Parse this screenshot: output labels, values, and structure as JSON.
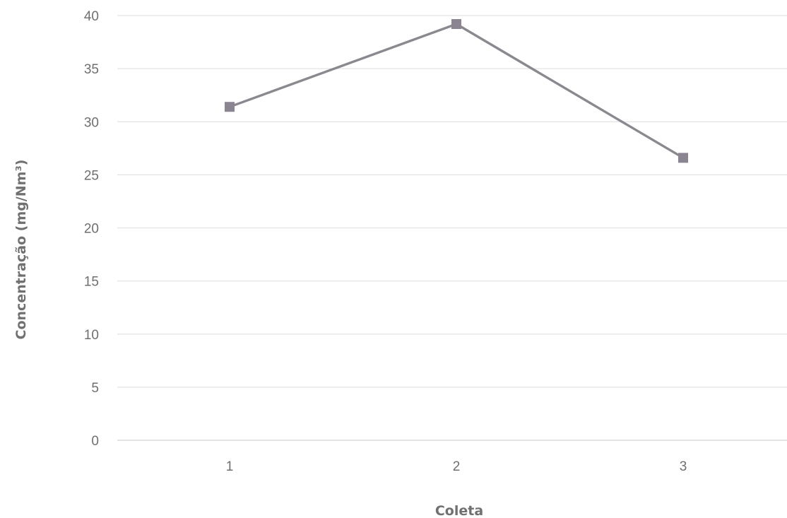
{
  "chart_data": {
    "type": "line",
    "categories": [
      "1",
      "2",
      "3"
    ],
    "series": [
      {
        "values": [
          31.4,
          39.2,
          26.6
        ]
      }
    ],
    "title": "",
    "xlabel": "Coleta",
    "ylabel": "Concentração (mg/Nm³)",
    "ylim": [
      0,
      40
    ],
    "yticks": [
      "0",
      "5",
      "10",
      "15",
      "20",
      "25",
      "30",
      "35",
      "40"
    ],
    "grid": true,
    "legend": "none",
    "colors": {
      "series": "#8c8890",
      "grid": "#e3e3e3",
      "text": "#6f6f6f"
    }
  }
}
